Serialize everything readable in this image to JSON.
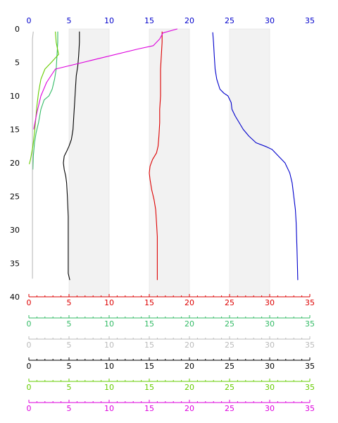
{
  "chart_data": {
    "type": "line",
    "orientation": "profile-depth-down",
    "y_axis": {
      "range": [
        0,
        40
      ],
      "ticks": [
        0,
        5,
        10,
        15,
        20,
        25,
        30,
        35,
        40
      ],
      "inverted": true,
      "label": ""
    },
    "top_axis": {
      "range": [
        0,
        35
      ],
      "ticks": [
        0,
        5,
        10,
        15,
        20,
        25,
        30,
        35
      ],
      "color": "#0000cc"
    },
    "shaded_x_bands": [
      [
        5,
        10
      ],
      [
        15,
        20
      ],
      [
        25,
        30
      ]
    ],
    "band_color": "#f2f2f2",
    "bottom_axes": [
      {
        "range": [
          0,
          35
        ],
        "ticks": [
          0,
          5,
          10,
          15,
          20,
          25,
          30,
          35
        ],
        "color": "#dd0000"
      },
      {
        "range": [
          0,
          35
        ],
        "ticks": [
          0,
          5,
          10,
          15,
          20,
          25,
          30,
          35
        ],
        "color": "#33bb66"
      },
      {
        "range": [
          0,
          35
        ],
        "ticks": [
          0,
          5,
          10,
          15,
          20,
          25,
          30,
          35
        ],
        "color": "#bbbbbb"
      },
      {
        "range": [
          0,
          35
        ],
        "ticks": [
          0,
          5,
          10,
          15,
          20,
          25,
          30,
          35
        ],
        "color": "#000000"
      },
      {
        "range": [
          0,
          35
        ],
        "ticks": [
          0,
          5,
          10,
          15,
          20,
          25,
          30,
          35
        ],
        "color": "#66cc00"
      },
      {
        "range": [
          0,
          35
        ],
        "ticks": [
          0,
          5,
          10,
          15,
          20,
          25,
          30,
          35
        ],
        "color": "#dd00dd"
      }
    ],
    "series": [
      {
        "color": "#0000cc",
        "axis": "top",
        "points": [
          [
            22.9,
            0.5
          ],
          [
            23.0,
            2
          ],
          [
            23.1,
            4
          ],
          [
            23.2,
            6
          ],
          [
            23.4,
            7.5
          ],
          [
            23.8,
            9
          ],
          [
            24.3,
            9.6
          ],
          [
            24.8,
            10
          ],
          [
            25.2,
            11
          ],
          [
            25.3,
            12
          ],
          [
            25.7,
            13
          ],
          [
            26.2,
            14
          ],
          [
            26.7,
            15
          ],
          [
            27.4,
            16
          ],
          [
            28.3,
            17
          ],
          [
            29.6,
            17.6
          ],
          [
            30.3,
            18
          ],
          [
            31.1,
            19
          ],
          [
            31.9,
            20
          ],
          [
            32.5,
            21.5
          ],
          [
            32.8,
            23
          ],
          [
            33.0,
            25
          ],
          [
            33.2,
            27
          ],
          [
            33.3,
            29
          ],
          [
            33.35,
            31
          ],
          [
            33.4,
            33
          ],
          [
            33.45,
            35
          ],
          [
            33.5,
            37.5
          ]
        ]
      },
      {
        "color": "#dd0000",
        "axis": "bottom",
        "points": [
          [
            16.6,
            0.4
          ],
          [
            16.6,
            2
          ],
          [
            16.5,
            4
          ],
          [
            16.4,
            6
          ],
          [
            16.4,
            8
          ],
          [
            16.4,
            10
          ],
          [
            16.3,
            12
          ],
          [
            16.3,
            14
          ],
          [
            16.2,
            16
          ],
          [
            16.1,
            17.5
          ],
          [
            15.9,
            18.5
          ],
          [
            15.4,
            19.5
          ],
          [
            15.1,
            20.5
          ],
          [
            15.0,
            21.5
          ],
          [
            15.1,
            22.5
          ],
          [
            15.3,
            24
          ],
          [
            15.6,
            25.5
          ],
          [
            15.8,
            27
          ],
          [
            15.9,
            29
          ],
          [
            16.0,
            31
          ],
          [
            16.0,
            33
          ],
          [
            16.0,
            35
          ],
          [
            16.0,
            37.5
          ]
        ]
      },
      {
        "color": "#33bb66",
        "axis": "bottom",
        "points": [
          [
            3.6,
            0.4
          ],
          [
            3.6,
            2
          ],
          [
            3.5,
            4
          ],
          [
            3.4,
            6
          ],
          [
            3.2,
            7.5
          ],
          [
            2.9,
            9
          ],
          [
            2.5,
            10
          ],
          [
            1.9,
            10.6
          ],
          [
            1.5,
            12
          ],
          [
            1.2,
            14
          ],
          [
            0.9,
            15.5
          ],
          [
            0.7,
            17
          ],
          [
            0.55,
            19
          ],
          [
            0.5,
            21
          ]
        ]
      },
      {
        "color": "#bbbbbb",
        "axis": "bottom",
        "points": [
          [
            0.55,
            0.4
          ],
          [
            0.45,
            1.5
          ],
          [
            0.45,
            4
          ],
          [
            0.45,
            8
          ],
          [
            0.45,
            13
          ],
          [
            0.45,
            18
          ],
          [
            0.45,
            23
          ],
          [
            0.45,
            28
          ],
          [
            0.45,
            33
          ],
          [
            0.45,
            37.3
          ]
        ]
      },
      {
        "color": "#000000",
        "axis": "bottom",
        "points": [
          [
            6.3,
            0.4
          ],
          [
            6.3,
            2
          ],
          [
            6.2,
            4
          ],
          [
            6.1,
            5.5
          ],
          [
            5.9,
            7
          ],
          [
            5.8,
            9
          ],
          [
            5.7,
            11
          ],
          [
            5.6,
            13
          ],
          [
            5.5,
            15
          ],
          [
            5.3,
            16.5
          ],
          [
            5.0,
            17.5
          ],
          [
            4.7,
            18.3
          ],
          [
            4.4,
            19
          ],
          [
            4.3,
            20
          ],
          [
            4.4,
            21
          ],
          [
            4.6,
            22
          ],
          [
            4.7,
            23
          ],
          [
            4.8,
            25
          ],
          [
            4.9,
            28
          ],
          [
            4.9,
            31
          ],
          [
            4.9,
            34
          ],
          [
            4.9,
            36.5
          ],
          [
            5.1,
            37.5
          ]
        ]
      },
      {
        "color": "#66cc00",
        "axis": "bottom",
        "points": [
          [
            3.3,
            0.4
          ],
          [
            3.4,
            2
          ],
          [
            3.7,
            3.8
          ],
          [
            2.8,
            5
          ],
          [
            2.0,
            6
          ],
          [
            1.5,
            7.5
          ],
          [
            1.2,
            9.5
          ],
          [
            1.0,
            11.5
          ],
          [
            0.85,
            13.5
          ],
          [
            0.7,
            15.5
          ],
          [
            0.5,
            17.5
          ],
          [
            0.2,
            19.5
          ],
          [
            0.05,
            20.2
          ]
        ]
      },
      {
        "color": "#dd00dd",
        "axis": "bottom",
        "points": [
          [
            0.6,
            15
          ],
          [
            1.0,
            12.5
          ],
          [
            1.5,
            10
          ],
          [
            2.2,
            8
          ],
          [
            3.3,
            6
          ],
          [
            13.6,
            3
          ],
          [
            15.5,
            2.5
          ],
          [
            16.3,
            1.5
          ],
          [
            16.7,
            0.6
          ],
          [
            18.5,
            0
          ]
        ]
      }
    ]
  }
}
